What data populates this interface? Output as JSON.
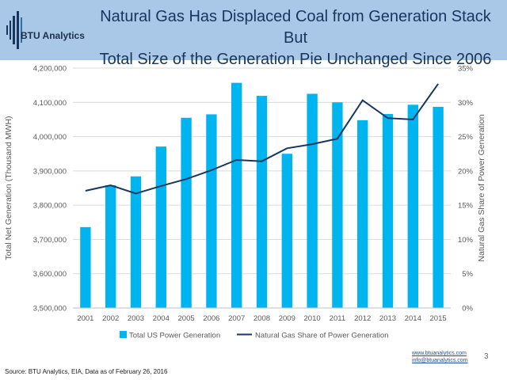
{
  "header": {
    "title_line1": "Natural Gas Has Displaced Coal from Generation Stack But",
    "title_line2": "Total Size of the Generation Pie Unchanged Since 2006",
    "logo_text": "BTU Analytics"
  },
  "footer": {
    "link_website": "www.btuanalytics.com",
    "link_email": "info@btuanalytics.com",
    "page_number": "3",
    "source": "Source: BTU Analytics, EIA, Data as of February 26, 2016"
  },
  "colors": {
    "bar": "#00b4f0",
    "line": "#17375e",
    "header_bg": "#a9c7e6",
    "title": "#17365d",
    "grid": "#d9d9d9"
  },
  "chart_data": {
    "type": "bar",
    "categories": [
      "2001",
      "2002",
      "2003",
      "2004",
      "2005",
      "2006",
      "2007",
      "2008",
      "2009",
      "2010",
      "2011",
      "2012",
      "2013",
      "2014",
      "2015"
    ],
    "series": [
      {
        "name": "Total US Power Generation",
        "type": "bar",
        "axis": "left",
        "values": [
          3736000,
          3858000,
          3884000,
          3971000,
          4055000,
          4065000,
          4157000,
          4119000,
          3950000,
          4125000,
          4100000,
          4048000,
          4066000,
          4093000,
          4087000
        ]
      },
      {
        "name": "Natural Gas Share of Power Generation",
        "type": "line",
        "axis": "right",
        "values": [
          17.1,
          17.9,
          16.7,
          17.8,
          18.8,
          20.1,
          21.6,
          21.4,
          23.3,
          23.9,
          24.7,
          30.3,
          27.7,
          27.5,
          32.7
        ]
      }
    ],
    "ylabel": "Total Net Generation (Thousand MWH)",
    "ylabel_right": "Natural Gas Share of Power Generation",
    "ylim": [
      3500000,
      4200000
    ],
    "ylim_right": [
      0,
      35
    ],
    "yticks": [
      "3,500,000",
      "3,600,000",
      "3,700,000",
      "3,800,000",
      "3,900,000",
      "4,000,000",
      "4,100,000",
      "4,200,000"
    ],
    "yticks_right": [
      "0%",
      "5%",
      "10%",
      "15%",
      "20%",
      "25%",
      "30%",
      "35%"
    ],
    "grid": "horizontal",
    "legend_position": "bottom"
  }
}
